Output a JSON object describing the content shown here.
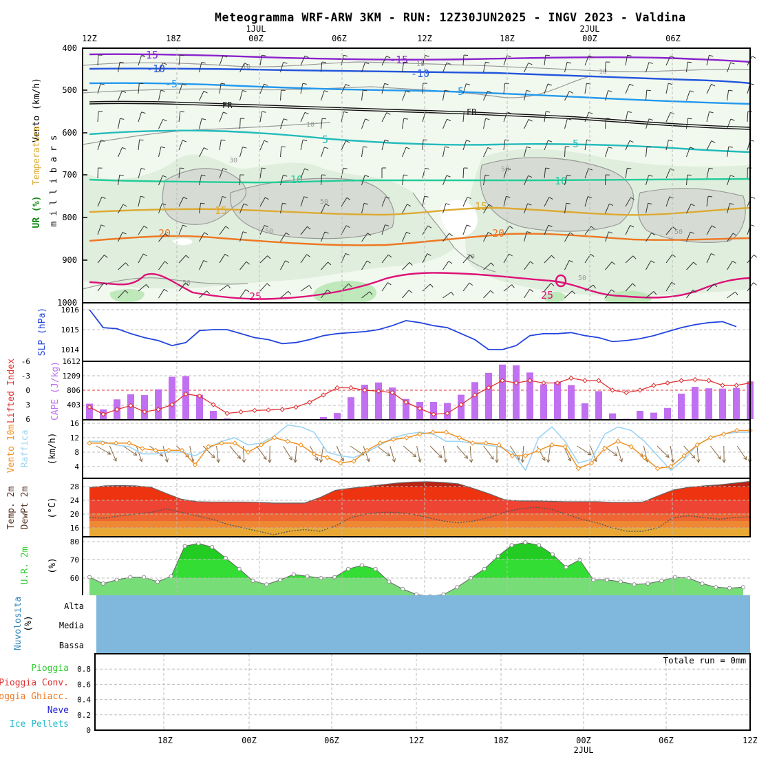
{
  "title": "Meteogramma WRF-ARW 3KM - RUN: 12Z30JUN2025 - INGV 2023 - Valdina",
  "time_axis": {
    "top_labels": [
      "12Z",
      "18Z",
      "00Z",
      "06Z",
      "12Z",
      "18Z",
      "00Z",
      "06Z"
    ],
    "top_dates": [
      {
        "label": "1JUL",
        "at": "00Z"
      },
      {
        "label": "2JUL",
        "at": "00Z"
      }
    ],
    "bottom_labels": [
      "18Z",
      "00Z",
      "06Z",
      "12Z",
      "18Z",
      "00Z",
      "06Z",
      "12Z"
    ],
    "bottom_date": "2JUL"
  },
  "panels": {
    "upper_air": {
      "labels": [
        "Vento (km/h)",
        "Temperatura",
        "UR (%)",
        "m i l l i b a r s"
      ],
      "pressure_ticks": [
        "400",
        "500",
        "600",
        "700",
        "800",
        "900",
        "1000"
      ],
      "isotherm_labels": [
        "-15",
        "-15",
        "-10",
        "-10",
        "-5",
        "-5",
        "FR",
        "FR",
        "5",
        "5",
        "10",
        "10",
        "15",
        "15",
        "20",
        "20",
        "25",
        "25"
      ],
      "rh_labels": [
        "10",
        "10",
        "10",
        "10",
        "30",
        "30",
        "50",
        "50",
        "50",
        "50",
        "50",
        "50"
      ]
    },
    "slp": {
      "label": "SLP (hPa)",
      "ticks": [
        "1016",
        "1015",
        "1014"
      ]
    },
    "cape": {
      "labels": [
        "Lifted Index",
        "CAPE (J/kg)"
      ],
      "li_ticks": [
        "-6",
        "-3",
        "0",
        "3",
        "6"
      ],
      "cape_ticks": [
        "1612",
        "1209",
        "806",
        "403"
      ]
    },
    "wind10m": {
      "labels": [
        "Vento 10m",
        "Raffica",
        "(km/h)"
      ],
      "ticks": [
        "16",
        "12",
        "8",
        "4"
      ]
    },
    "temp2m": {
      "labels": [
        "Temp. 2m",
        "DewPt 2m",
        "(°C)"
      ],
      "ticks": [
        "28",
        "24",
        "20",
        "16"
      ]
    },
    "rh2m": {
      "labels": [
        "U.R. 2m",
        "(%)"
      ],
      "ticks": [
        "80",
        "70",
        "60"
      ]
    },
    "clouds": {
      "labels": [
        "Nuvolosita",
        "(%)"
      ],
      "levels": [
        "Alta",
        "Media",
        "Bassa"
      ]
    },
    "precip": {
      "labels": [
        "Pioggia",
        "Pioggia Conv.",
        "Pioggia Ghiacc.",
        "Neve",
        "Ice Pellets"
      ],
      "ticks": [
        "0.8",
        "0.6",
        "0.4",
        "0.2",
        "0"
      ],
      "total": "Totale run = 0mm"
    }
  },
  "colors": {
    "slp": "#2244dd",
    "cape": "#c070f0",
    "lifted_index": "#e03030",
    "wind": "#f09020",
    "gust": "#9cd4f4",
    "rh": "#33cc33",
    "clouds": "#80b8dd",
    "iso_m15": "#8a22cc",
    "iso_m10": "#2255dd",
    "iso_m5": "#2299ee",
    "iso_fr": "#111111",
    "iso_5": "#22bbbb",
    "iso_10": "#22cc99",
    "iso_15": "#ddaa33",
    "iso_20": "#ee7722",
    "iso_25": "#dd1177"
  },
  "chart_data": {
    "type": "meteogram",
    "time_start": "12Z30JUN2025",
    "time_step_hours": 1,
    "slp": [
      1016.0,
      1015.1,
      1015.05,
      1014.8,
      1014.6,
      1014.45,
      1014.2,
      1014.35,
      1014.95,
      1015.0,
      1015.0,
      1014.8,
      1014.6,
      1014.5,
      1014.3,
      1014.35,
      1014.5,
      1014.7,
      1014.8,
      1014.85,
      1014.9,
      1015.0,
      1015.2,
      1015.45,
      1015.35,
      1015.2,
      1015.1,
      1014.8,
      1014.5,
      1014.0,
      1014.0,
      1014.2,
      1014.7,
      1014.8,
      1014.8,
      1014.85,
      1014.7,
      1014.6,
      1014.4,
      1014.45,
      1014.55,
      1014.7,
      1014.9,
      1015.1,
      1015.25,
      1015.35,
      1015.4,
      1015.15
    ],
    "cape": [
      430,
      270,
      550,
      690,
      670,
      830,
      1180,
      1200,
      680,
      230,
      20,
      0,
      0,
      0,
      0,
      0,
      0,
      60,
      170,
      610,
      960,
      1020,
      880,
      560,
      480,
      480,
      450,
      680,
      1030,
      1290,
      1520,
      1500,
      1300,
      970,
      1040,
      950,
      440,
      780,
      160,
      10,
      230,
      180,
      310,
      710,
      900,
      860,
      850,
      870,
      1050
    ],
    "lifted_index": [
      3.5,
      5.0,
      4.0,
      3.2,
      4.5,
      4.0,
      3.0,
      0.8,
      1.2,
      3.0,
      4.8,
      4.5,
      4.2,
      4.1,
      4.0,
      3.5,
      2.5,
      1.0,
      -0.5,
      -0.5,
      0.0,
      0.2,
      0.5,
      2.5,
      3.8,
      5.0,
      4.8,
      3.0,
      1.0,
      -0.5,
      -2.0,
      -1.5,
      -2.0,
      -1.5,
      -1.5,
      -2.5,
      -2.0,
      -2.0,
      0.0,
      0.5,
      0.0,
      -1.0,
      -1.5,
      -2.0,
      -2.2,
      -2.0,
      -1.0,
      -1.0,
      -1.5
    ],
    "wind_10m": [
      10.5,
      10.5,
      10.5,
      10.5,
      9.0,
      8.5,
      8.5,
      8.5,
      4.5,
      9.5,
      10.5,
      10.5,
      8.0,
      10.0,
      12.0,
      11.0,
      10.0,
      7.5,
      6.5,
      5.0,
      5.5,
      8.5,
      10.5,
      11.5,
      12.0,
      13.0,
      13.5,
      13.5,
      12.0,
      10.5,
      10.5,
      10.0,
      7.0,
      7.0,
      8.5,
      10.0,
      9.5,
      3.5,
      5.0,
      9.0,
      11.0,
      9.5,
      6.5,
      3.5,
      4.0,
      7.0,
      10.0,
      12.0,
      13.0,
      14.0,
      14.0
    ],
    "gust_10m": [
      11.0,
      11.0,
      10.0,
      9.5,
      7.5,
      7.5,
      8.0,
      8.0,
      7.0,
      9.0,
      11.0,
      12.0,
      10.0,
      10.5,
      12.5,
      15.5,
      15.0,
      13.5,
      8.0,
      7.0,
      6.5,
      8.0,
      10.0,
      12.0,
      13.0,
      13.5,
      13.0,
      11.0,
      11.0,
      10.5,
      10.0,
      9.5,
      8.0,
      3.0,
      12.0,
      15.0,
      11.0,
      5.0,
      6.0,
      13.0,
      15.0,
      14.0,
      11.0,
      7.0,
      3.0,
      6.0,
      10.0,
      12.0,
      13.0,
      13.5,
      13.5
    ],
    "temp_2m": [
      27.7,
      28.2,
      28.3,
      28.2,
      27.8,
      26.0,
      24.3,
      23.6,
      23.5,
      23.5,
      23.5,
      23.4,
      23.2,
      23.2,
      23.2,
      24.8,
      26.9,
      27.5,
      28.0,
      28.5,
      29.0,
      29.3,
      29.4,
      29.2,
      28.8,
      27.4,
      25.9,
      24.2,
      23.8,
      23.8,
      23.7,
      23.6,
      23.6,
      23.6,
      23.4,
      23.4,
      23.5,
      25.3,
      27.0,
      27.8,
      28.2,
      28.5,
      29.0,
      29.5
    ],
    "dewpoint_2m": [
      19.0,
      18.8,
      19.5,
      20.0,
      20.5,
      21.5,
      20.5,
      19.5,
      18.5,
      17.0,
      16.0,
      15.0,
      14.0,
      15.0,
      15.5,
      15.0,
      16.5,
      19.0,
      20.0,
      20.5,
      20.5,
      20.0,
      19.0,
      18.0,
      17.5,
      18.0,
      19.0,
      20.5,
      21.5,
      22.0,
      21.5,
      20.0,
      18.5,
      17.5,
      16.0,
      15.0,
      15.0,
      16.0,
      19.0,
      19.5,
      19.0,
      18.5,
      19.0,
      19.2
    ],
    "rh_2m": [
      60.5,
      57,
      59,
      60.5,
      60.5,
      58,
      61,
      77.5,
      79,
      77,
      71,
      65,
      58.5,
      56.5,
      59,
      62,
      61,
      60,
      60.5,
      65,
      67,
      65,
      58,
      54,
      51,
      50,
      51,
      55,
      60,
      65,
      72,
      78,
      79.5,
      78,
      73,
      66,
      70,
      59,
      59,
      58,
      56.5,
      57,
      58.5,
      60.5,
      60,
      57,
      55,
      54.5,
      55
    ],
    "upper_wind_barbs": "per-level wind barbs 400-1000 hPa (visual)",
    "cloud_cover_pct": {
      "Alta": 100,
      "Media": 100,
      "Bassa": 100
    },
    "precip_total_mm": 0
  }
}
